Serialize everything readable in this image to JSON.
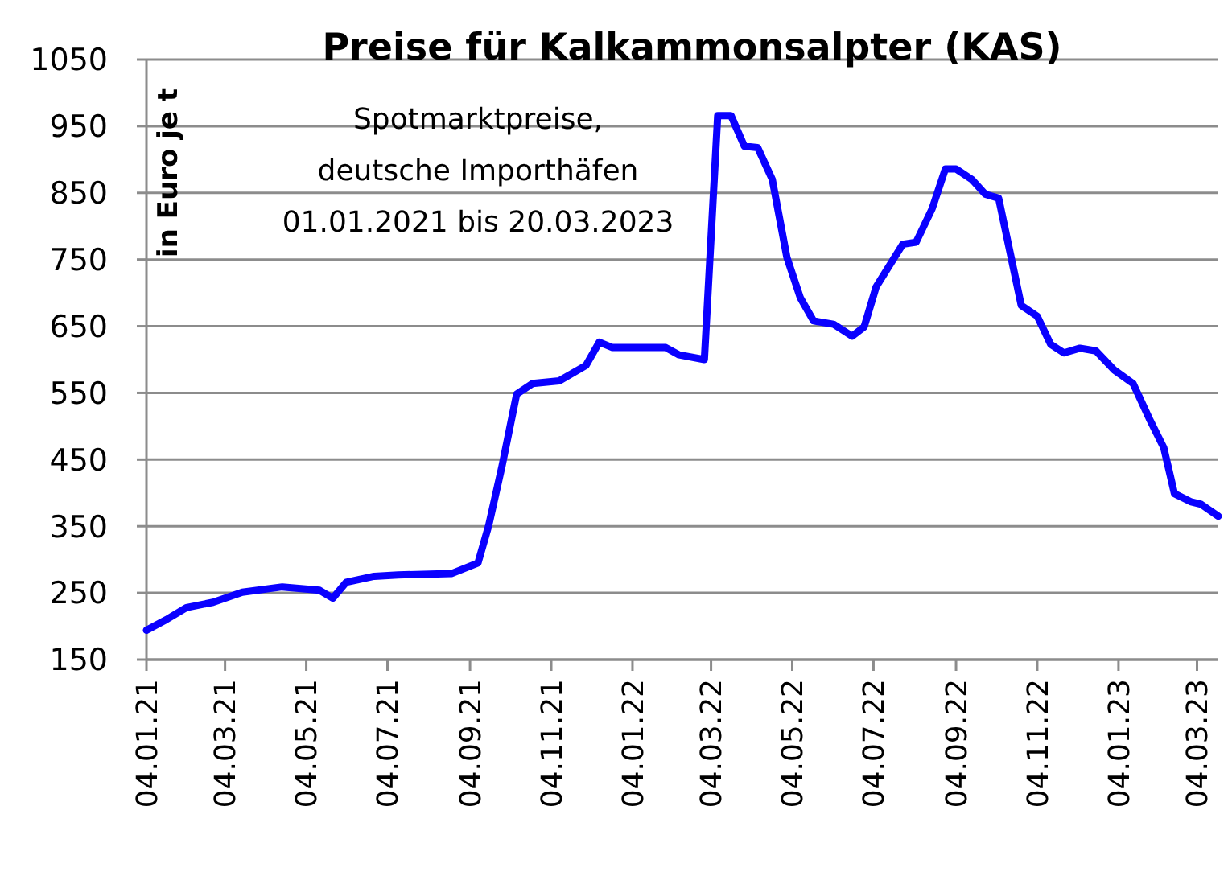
{
  "chart_data": {
    "type": "line",
    "title": "Preise für Kalkammonsalpter (KAS)",
    "ylabel": "in Euro je t",
    "annotations": [
      "Spotmarktpreise,\ndeutsche Importhäfen\n01.01.2021 bis 20.03.2023"
    ],
    "x": [
      "2021-01-04",
      "2021-01-19",
      "2021-02-03",
      "2021-02-23",
      "2021-03-17",
      "2021-04-16",
      "2021-05-14",
      "2021-05-24",
      "2021-06-03",
      "2021-06-24",
      "2021-07-12",
      "2021-08-21",
      "2021-09-10",
      "2021-09-18",
      "2021-09-28",
      "2021-10-09",
      "2021-10-21",
      "2021-11-10",
      "2021-11-30",
      "2021-12-10",
      "2021-12-20",
      "2022-01-29",
      "2022-02-08",
      "2022-02-27",
      "2022-03-09",
      "2022-03-19",
      "2022-03-29",
      "2022-04-08",
      "2022-04-19",
      "2022-04-30",
      "2022-05-10",
      "2022-05-20",
      "2022-06-04",
      "2022-06-18",
      "2022-06-27",
      "2022-07-06",
      "2022-07-26",
      "2022-08-05",
      "2022-08-17",
      "2022-08-27",
      "2022-09-04",
      "2022-09-16",
      "2022-09-26",
      "2022-10-06",
      "2022-10-23",
      "2022-11-04",
      "2022-11-14",
      "2022-11-24",
      "2022-12-06",
      "2022-12-18",
      "2023-01-01",
      "2023-01-15",
      "2023-01-27",
      "2023-02-07",
      "2023-02-15",
      "2023-02-27",
      "2023-03-07",
      "2023-03-20"
    ],
    "series": [
      {
        "color": "#0a00ff",
        "values": [
          194,
          210,
          228,
          236,
          251,
          259,
          254,
          242,
          266,
          275,
          277,
          279,
          295,
          351,
          440,
          548,
          564,
          568,
          591,
          626,
          618,
          618,
          607,
          600,
          966,
          966,
          920,
          918,
          870,
          753,
          693,
          658,
          653,
          635,
          649,
          709,
          773,
          776,
          826,
          886,
          886,
          870,
          848,
          842,
          681,
          665,
          623,
          610,
          617,
          613,
          584,
          564,
          512,
          468,
          399,
          387,
          383,
          365
        ]
      }
    ],
    "xlim": [
      "2021-01-04",
      "2023-03-20"
    ],
    "xticks": [
      {
        "value": "2021-01-04",
        "label": "04.01.21"
      },
      {
        "value": "2021-03-04",
        "label": "04.03.21"
      },
      {
        "value": "2021-05-04",
        "label": "04.05.21"
      },
      {
        "value": "2021-07-04",
        "label": "04.07.21"
      },
      {
        "value": "2021-09-04",
        "label": "04.09.21"
      },
      {
        "value": "2021-11-04",
        "label": "04.11.21"
      },
      {
        "value": "2022-01-04",
        "label": "04.01.22"
      },
      {
        "value": "2022-03-04",
        "label": "04.03.22"
      },
      {
        "value": "2022-05-04",
        "label": "04.05.22"
      },
      {
        "value": "2022-07-04",
        "label": "04.07.22"
      },
      {
        "value": "2022-09-04",
        "label": "04.09.22"
      },
      {
        "value": "2022-11-04",
        "label": "04.11.22"
      },
      {
        "value": "2023-01-04",
        "label": "04.01.23"
      },
      {
        "value": "2023-03-04",
        "label": "04.03.23"
      }
    ],
    "ylim": [
      150,
      1050
    ],
    "yticks": [
      150,
      250,
      350,
      450,
      550,
      650,
      750,
      850,
      950,
      1050
    ],
    "grid": "y",
    "marker": "none",
    "line_style": "solid"
  }
}
